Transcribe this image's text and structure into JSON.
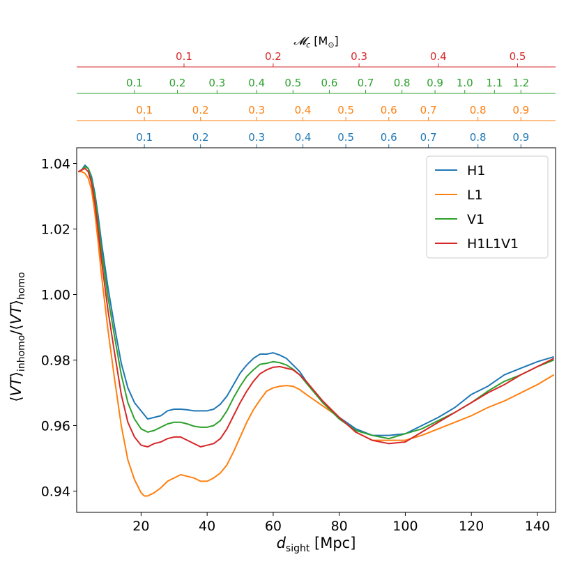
{
  "chart_data": {
    "type": "line",
    "title": "",
    "xlabel": "d_sight [Mpc]",
    "xlabel_main": "d",
    "xlabel_sub": "sight",
    "xlabel_unit": " [Mpc]",
    "ylabel": "⟨VT⟩_inhomo/⟨VT⟩_homo",
    "ylabel_parts": {
      "open": "⟨",
      "var": "VT",
      "close": "⟩",
      "sub1": "inhomo",
      "slash": "/",
      "sub2": "homo"
    },
    "xlim": [
      0.5,
      145.5
    ],
    "ylim": [
      0.9335,
      1.0448
    ],
    "xticks": [
      20,
      40,
      60,
      80,
      100,
      120,
      140
    ],
    "xtick_labels": [
      "20",
      "40",
      "60",
      "80",
      "100",
      "120",
      "140"
    ],
    "yticks": [
      0.94,
      0.96,
      0.98,
      1.0,
      1.02,
      1.04
    ],
    "ytick_labels": [
      "0.94",
      "0.96",
      "0.98",
      "1.00",
      "1.02",
      "1.04"
    ],
    "legend_position": "top-right",
    "series": [
      {
        "name": "H1",
        "color": "#1f77b4",
        "x": [
          1,
          2,
          3,
          4,
          5,
          6,
          7,
          8,
          10,
          12,
          14,
          16,
          18,
          20,
          22,
          24,
          26,
          28,
          30,
          32,
          34,
          36,
          38,
          40,
          42,
          44,
          46,
          48,
          50,
          52,
          54,
          56,
          58,
          60,
          62,
          64,
          66,
          68,
          70,
          75,
          80,
          85,
          90,
          95,
          100,
          105,
          110,
          115,
          120,
          125,
          130,
          135,
          140,
          145
        ],
        "y": [
          1.0375,
          1.038,
          1.0395,
          1.0385,
          1.036,
          1.031,
          1.024,
          1.016,
          1.002,
          0.99,
          0.979,
          0.9715,
          0.967,
          0.9645,
          0.962,
          0.9625,
          0.963,
          0.9645,
          0.965,
          0.965,
          0.9648,
          0.9645,
          0.9645,
          0.9645,
          0.965,
          0.9665,
          0.969,
          0.9725,
          0.976,
          0.9785,
          0.9805,
          0.9818,
          0.9818,
          0.9822,
          0.9815,
          0.9805,
          0.9785,
          0.9765,
          0.9735,
          0.967,
          0.9625,
          0.959,
          0.957,
          0.957,
          0.9575,
          0.96,
          0.9625,
          0.9655,
          0.9695,
          0.972,
          0.9755,
          0.9775,
          0.9795,
          0.981
        ]
      },
      {
        "name": "L1",
        "color": "#ff7f0e",
        "x": [
          1,
          2,
          3,
          4,
          5,
          6,
          7,
          8,
          10,
          12,
          14,
          16,
          18,
          20,
          21,
          22,
          24,
          26,
          28,
          30,
          32,
          34,
          36,
          38,
          40,
          42,
          44,
          46,
          48,
          50,
          52,
          54,
          56,
          58,
          60,
          62,
          64,
          66,
          68,
          70,
          75,
          80,
          85,
          90,
          95,
          100,
          105,
          110,
          115,
          120,
          125,
          130,
          135,
          140,
          145
        ],
        "y": [
          1.0375,
          1.0375,
          1.037,
          1.0355,
          1.032,
          1.025,
          1.016,
          1.006,
          0.989,
          0.974,
          0.96,
          0.9495,
          0.9435,
          0.9395,
          0.9385,
          0.9385,
          0.9395,
          0.941,
          0.943,
          0.944,
          0.945,
          0.9445,
          0.944,
          0.943,
          0.943,
          0.944,
          0.9455,
          0.948,
          0.952,
          0.9565,
          0.961,
          0.9648,
          0.9678,
          0.9705,
          0.9715,
          0.972,
          0.9722,
          0.972,
          0.971,
          0.9695,
          0.966,
          0.9625,
          0.958,
          0.9555,
          0.9555,
          0.9555,
          0.957,
          0.959,
          0.961,
          0.963,
          0.9655,
          0.9675,
          0.97,
          0.9725,
          0.9755
        ]
      },
      {
        "name": "V1",
        "color": "#2ca02c",
        "x": [
          1,
          2,
          3,
          4,
          5,
          6,
          7,
          8,
          10,
          12,
          14,
          16,
          18,
          20,
          22,
          24,
          26,
          28,
          30,
          32,
          34,
          36,
          38,
          40,
          42,
          44,
          46,
          48,
          50,
          52,
          54,
          56,
          58,
          60,
          62,
          64,
          66,
          68,
          70,
          75,
          80,
          85,
          90,
          95,
          100,
          105,
          110,
          115,
          120,
          125,
          130,
          135,
          140,
          145
        ],
        "y": [
          1.0375,
          1.038,
          1.039,
          1.0385,
          1.035,
          1.03,
          1.022,
          1.0135,
          0.999,
          0.987,
          0.9755,
          0.967,
          0.962,
          0.959,
          0.958,
          0.9585,
          0.9595,
          0.9605,
          0.961,
          0.961,
          0.9605,
          0.9598,
          0.9595,
          0.9595,
          0.96,
          0.9615,
          0.9645,
          0.9685,
          0.972,
          0.975,
          0.977,
          0.9787,
          0.979,
          0.9795,
          0.9792,
          0.9785,
          0.9772,
          0.9755,
          0.973,
          0.967,
          0.962,
          0.9585,
          0.957,
          0.956,
          0.9575,
          0.959,
          0.9615,
          0.964,
          0.967,
          0.9705,
          0.9735,
          0.9755,
          0.978,
          0.98
        ]
      },
      {
        "name": "H1L1V1",
        "color": "#d62728",
        "x": [
          1,
          2,
          3,
          4,
          5,
          6,
          7,
          8,
          10,
          12,
          14,
          16,
          18,
          20,
          22,
          24,
          26,
          28,
          30,
          32,
          34,
          36,
          38,
          40,
          42,
          44,
          46,
          48,
          50,
          52,
          54,
          56,
          58,
          60,
          62,
          64,
          66,
          68,
          70,
          75,
          80,
          85,
          90,
          95,
          100,
          105,
          110,
          115,
          120,
          125,
          130,
          135,
          140,
          145
        ],
        "y": [
          1.0375,
          1.038,
          1.0385,
          1.0375,
          1.034,
          1.028,
          1.0195,
          1.0105,
          0.995,
          0.982,
          0.9695,
          0.961,
          0.9565,
          0.954,
          0.9535,
          0.9545,
          0.955,
          0.956,
          0.9565,
          0.9565,
          0.9555,
          0.9545,
          0.9535,
          0.954,
          0.9545,
          0.956,
          0.959,
          0.963,
          0.967,
          0.9705,
          0.9735,
          0.9758,
          0.977,
          0.9778,
          0.978,
          0.9775,
          0.977,
          0.9755,
          0.9735,
          0.9675,
          0.9625,
          0.958,
          0.9555,
          0.9545,
          0.955,
          0.958,
          0.961,
          0.964,
          0.967,
          0.97,
          0.9725,
          0.9755,
          0.978,
          0.9805
        ]
      }
    ],
    "top_axes": [
      {
        "color": "#d62728",
        "label_main": "𝓜",
        "label_sub": "c",
        "label_rest": " [M",
        "label_sym": "⊙",
        "label_close": "]",
        "ticks": [
          {
            "x": 33,
            "label": "0.1"
          },
          {
            "x": 60,
            "label": "0.2"
          },
          {
            "x": 86,
            "label": "0.3"
          },
          {
            "x": 110,
            "label": "0.4"
          },
          {
            "x": 134,
            "label": "0.5"
          }
        ]
      },
      {
        "color": "#2ca02c",
        "ticks": [
          {
            "x": 18,
            "label": "0.1"
          },
          {
            "x": 31,
            "label": "0.2"
          },
          {
            "x": 43,
            "label": "0.3"
          },
          {
            "x": 55,
            "label": "0.4"
          },
          {
            "x": 66,
            "label": "0.5"
          },
          {
            "x": 77,
            "label": "0.6"
          },
          {
            "x": 88,
            "label": "0.7"
          },
          {
            "x": 99,
            "label": "0.8"
          },
          {
            "x": 109,
            "label": "0.9"
          },
          {
            "x": 118,
            "label": "1.0"
          },
          {
            "x": 127,
            "label": "1.1"
          },
          {
            "x": 135,
            "label": "1.2"
          }
        ]
      },
      {
        "color": "#ff7f0e",
        "ticks": [
          {
            "x": 21,
            "label": "0.1"
          },
          {
            "x": 38,
            "label": "0.2"
          },
          {
            "x": 55,
            "label": "0.3"
          },
          {
            "x": 69,
            "label": "0.4"
          },
          {
            "x": 82,
            "label": "0.5"
          },
          {
            "x": 95,
            "label": "0.6"
          },
          {
            "x": 107,
            "label": "0.7"
          },
          {
            "x": 122,
            "label": "0.8"
          },
          {
            "x": 135,
            "label": "0.9"
          }
        ]
      },
      {
        "color": "#1f77b4",
        "ticks": [
          {
            "x": 21,
            "label": "0.1"
          },
          {
            "x": 38,
            "label": "0.2"
          },
          {
            "x": 55,
            "label": "0.3"
          },
          {
            "x": 69,
            "label": "0.4"
          },
          {
            "x": 82,
            "label": "0.5"
          },
          {
            "x": 95,
            "label": "0.6"
          },
          {
            "x": 107,
            "label": "0.7"
          },
          {
            "x": 122,
            "label": "0.8"
          },
          {
            "x": 135,
            "label": "0.9"
          }
        ]
      }
    ]
  }
}
